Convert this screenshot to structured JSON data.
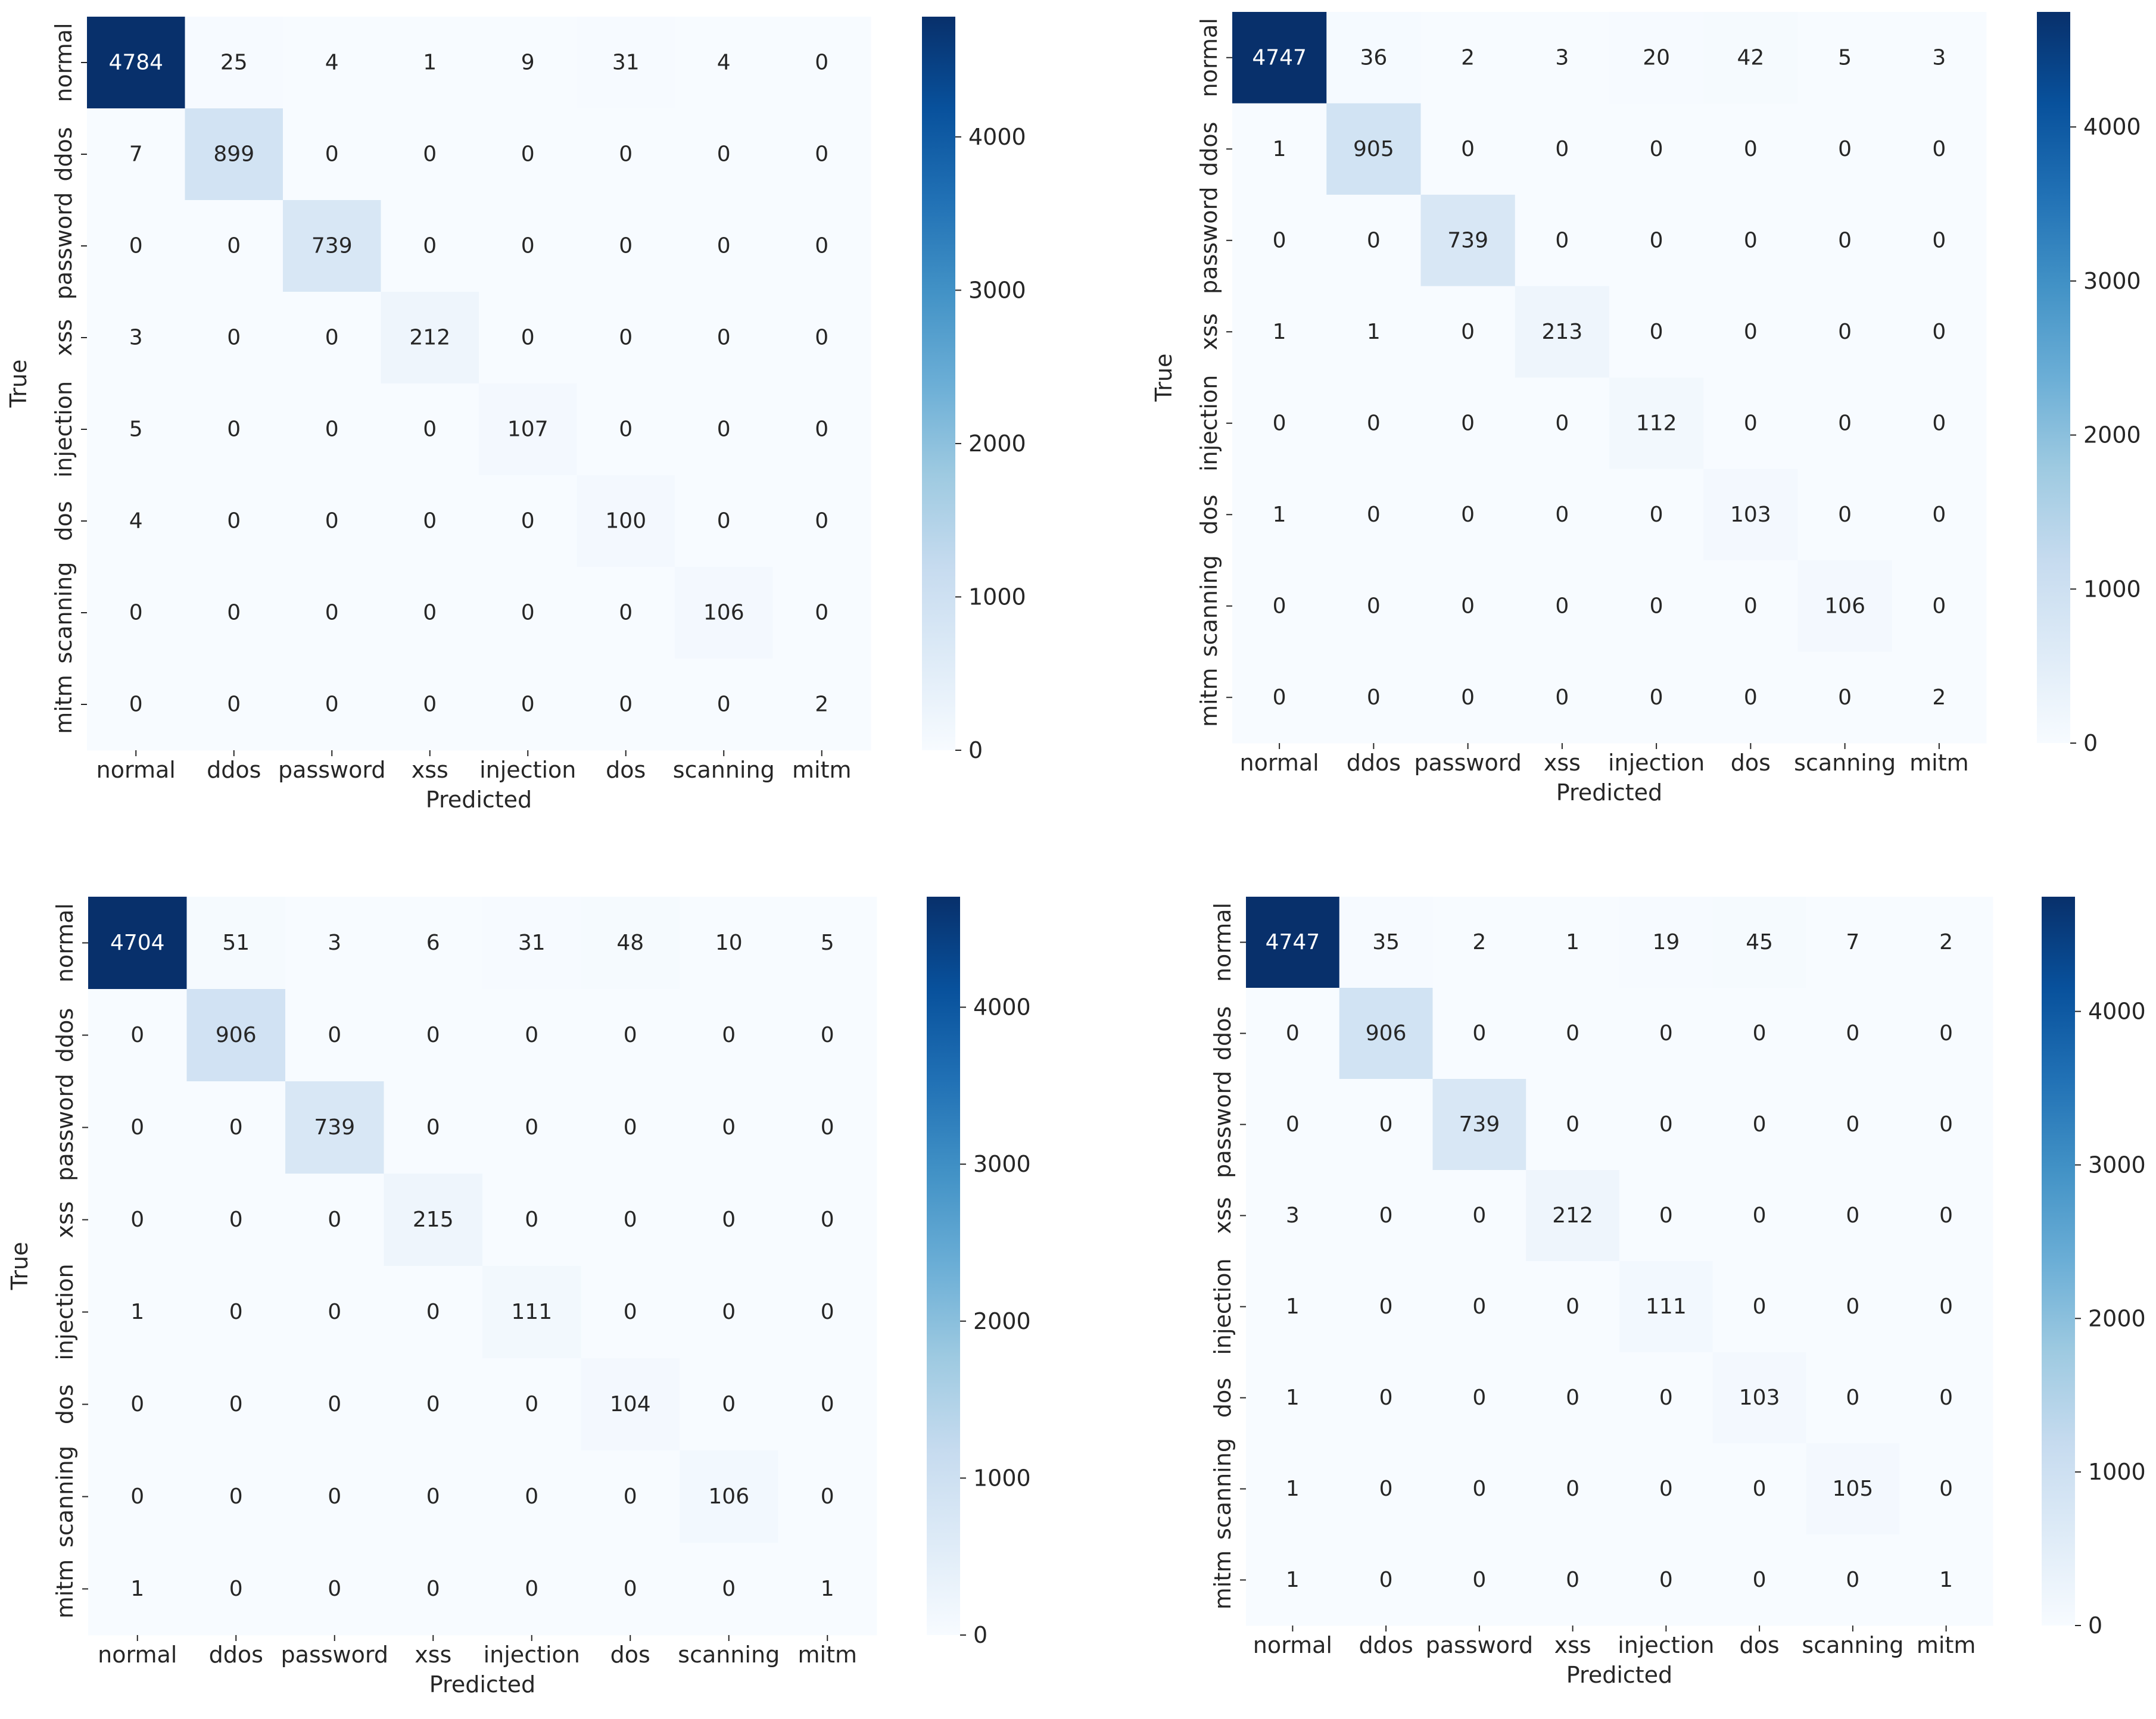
{
  "chart_data": [
    {
      "type": "heatmap",
      "name": "cm-top-left",
      "xlabel": "Predicted",
      "ylabel": "True",
      "categories": [
        "normal",
        "ddos",
        "password",
        "xss",
        "injection",
        "dos",
        "scanning",
        "mitm"
      ],
      "colorbar": {
        "min": 0,
        "max": 4784,
        "ticks": [
          0,
          1000,
          2000,
          3000,
          4000
        ]
      },
      "values": [
        [
          4784,
          25,
          4,
          1,
          9,
          31,
          4,
          0
        ],
        [
          7,
          899,
          0,
          0,
          0,
          0,
          0,
          0
        ],
        [
          0,
          0,
          739,
          0,
          0,
          0,
          0,
          0
        ],
        [
          3,
          0,
          0,
          212,
          0,
          0,
          0,
          0
        ],
        [
          5,
          0,
          0,
          0,
          107,
          0,
          0,
          0
        ],
        [
          4,
          0,
          0,
          0,
          0,
          100,
          0,
          0
        ],
        [
          0,
          0,
          0,
          0,
          0,
          0,
          106,
          0
        ],
        [
          0,
          0,
          0,
          0,
          0,
          0,
          0,
          2
        ]
      ]
    },
    {
      "type": "heatmap",
      "name": "cm-top-right",
      "xlabel": "Predicted",
      "ylabel": "True",
      "categories": [
        "normal",
        "ddos",
        "password",
        "xss",
        "injection",
        "dos",
        "scanning",
        "mitm"
      ],
      "colorbar": {
        "min": 0,
        "max": 4747,
        "ticks": [
          0,
          1000,
          2000,
          3000,
          4000
        ]
      },
      "values": [
        [
          4747,
          36,
          2,
          3,
          20,
          42,
          5,
          3
        ],
        [
          1,
          905,
          0,
          0,
          0,
          0,
          0,
          0
        ],
        [
          0,
          0,
          739,
          0,
          0,
          0,
          0,
          0
        ],
        [
          1,
          1,
          0,
          213,
          0,
          0,
          0,
          0
        ],
        [
          0,
          0,
          0,
          0,
          112,
          0,
          0,
          0
        ],
        [
          1,
          0,
          0,
          0,
          0,
          103,
          0,
          0
        ],
        [
          0,
          0,
          0,
          0,
          0,
          0,
          106,
          0
        ],
        [
          0,
          0,
          0,
          0,
          0,
          0,
          0,
          2
        ]
      ]
    },
    {
      "type": "heatmap",
      "name": "cm-bottom-left",
      "xlabel": "Predicted",
      "ylabel": "True",
      "categories": [
        "normal",
        "ddos",
        "password",
        "xss",
        "injection",
        "dos",
        "scanning",
        "mitm"
      ],
      "colorbar": {
        "min": 0,
        "max": 4704,
        "ticks": [
          0,
          1000,
          2000,
          3000,
          4000
        ]
      },
      "values": [
        [
          4704,
          51,
          3,
          6,
          31,
          48,
          10,
          5
        ],
        [
          0,
          906,
          0,
          0,
          0,
          0,
          0,
          0
        ],
        [
          0,
          0,
          739,
          0,
          0,
          0,
          0,
          0
        ],
        [
          0,
          0,
          0,
          215,
          0,
          0,
          0,
          0
        ],
        [
          1,
          0,
          0,
          0,
          111,
          0,
          0,
          0
        ],
        [
          0,
          0,
          0,
          0,
          0,
          104,
          0,
          0
        ],
        [
          0,
          0,
          0,
          0,
          0,
          0,
          106,
          0
        ],
        [
          1,
          0,
          0,
          0,
          0,
          0,
          0,
          1
        ]
      ]
    },
    {
      "type": "heatmap",
      "name": "cm-bottom-right",
      "xlabel": "Predicted",
      "ylabel": "",
      "categories": [
        "normal",
        "ddos",
        "password",
        "xss",
        "injection",
        "dos",
        "scanning",
        "mitm"
      ],
      "colorbar": {
        "min": 0,
        "max": 4747,
        "ticks": [
          0,
          1000,
          2000,
          3000,
          4000
        ]
      },
      "values": [
        [
          4747,
          35,
          2,
          1,
          19,
          45,
          7,
          2
        ],
        [
          0,
          906,
          0,
          0,
          0,
          0,
          0,
          0
        ],
        [
          0,
          0,
          739,
          0,
          0,
          0,
          0,
          0
        ],
        [
          3,
          0,
          0,
          212,
          0,
          0,
          0,
          0
        ],
        [
          1,
          0,
          0,
          0,
          111,
          0,
          0,
          0
        ],
        [
          1,
          0,
          0,
          0,
          0,
          103,
          0,
          0
        ],
        [
          1,
          0,
          0,
          0,
          0,
          0,
          105,
          0
        ],
        [
          1,
          0,
          0,
          0,
          0,
          0,
          0,
          1
        ]
      ]
    }
  ]
}
